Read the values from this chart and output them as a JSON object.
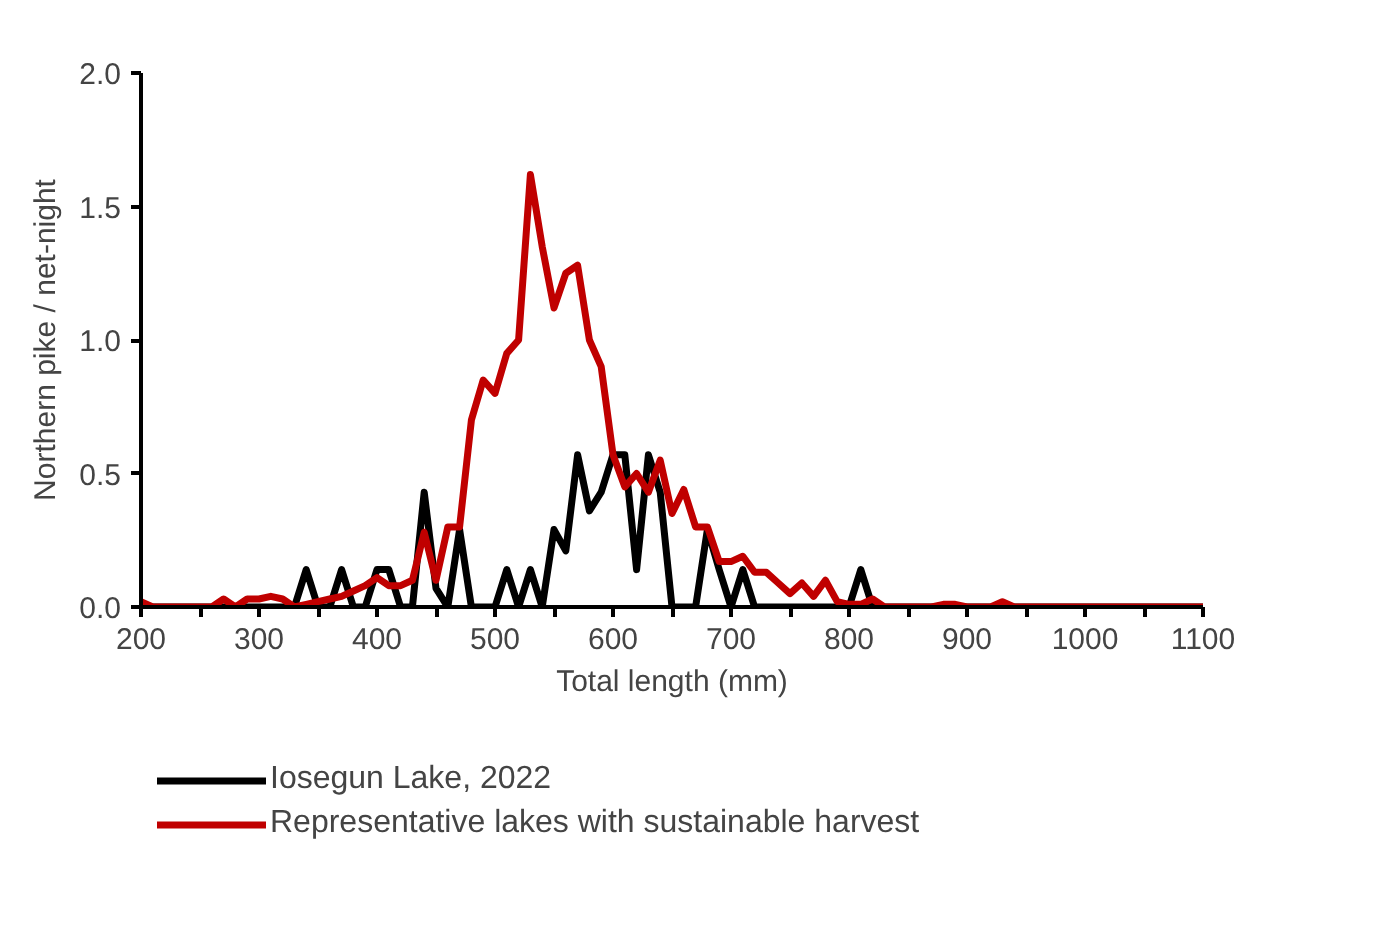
{
  "chart_data": {
    "type": "line",
    "xlabel": "Total length (mm)",
    "ylabel": "Northern pike / net-night",
    "x": [
      200,
      210,
      220,
      230,
      240,
      250,
      260,
      270,
      280,
      290,
      300,
      310,
      320,
      330,
      340,
      350,
      360,
      370,
      380,
      390,
      400,
      410,
      420,
      430,
      440,
      450,
      460,
      470,
      480,
      490,
      500,
      510,
      520,
      530,
      540,
      550,
      560,
      570,
      580,
      590,
      600,
      610,
      620,
      630,
      640,
      650,
      660,
      670,
      680,
      690,
      700,
      710,
      720,
      730,
      740,
      750,
      760,
      770,
      780,
      790,
      800,
      810,
      820,
      830,
      840,
      850,
      860,
      870,
      880,
      890,
      900,
      910,
      920,
      930,
      940,
      950,
      960,
      970,
      980,
      990,
      1000,
      1010,
      1020,
      1030,
      1040,
      1050,
      1060,
      1070,
      1080,
      1090,
      1100
    ],
    "series": [
      {
        "name": "Iosegun Lake, 2022",
        "color": "#000000",
        "values": [
          0,
          0,
          0,
          0,
          0,
          0,
          0,
          0,
          0,
          0,
          0,
          0,
          0,
          0,
          0.14,
          0,
          0,
          0.14,
          0,
          0,
          0.14,
          0.14,
          0,
          0,
          0.43,
          0.07,
          0,
          0.29,
          0,
          0,
          0,
          0.14,
          0,
          0.14,
          0,
          0.29,
          0.21,
          0.57,
          0.36,
          0.43,
          0.57,
          0.57,
          0.14,
          0.57,
          0.43,
          0,
          0,
          0,
          0.29,
          0.14,
          0,
          0.14,
          0,
          0,
          0,
          0,
          0,
          0,
          0,
          0,
          0,
          0.14,
          0,
          0,
          0,
          0,
          0,
          0,
          0,
          0,
          0,
          0,
          0,
          0,
          0,
          0,
          0,
          0,
          0,
          0,
          0,
          0,
          0,
          0,
          0,
          0,
          0,
          0,
          0,
          0,
          0
        ]
      },
      {
        "name": "Representative lakes with sustainable harvest",
        "color": "#c00000",
        "values": [
          0.02,
          0,
          0,
          0,
          0,
          0,
          0,
          0.03,
          0,
          0.03,
          0.03,
          0.04,
          0.03,
          0,
          0.01,
          0.02,
          0.03,
          0.04,
          0.06,
          0.08,
          0.11,
          0.08,
          0.08,
          0.1,
          0.28,
          0.1,
          0.3,
          0.3,
          0.7,
          0.85,
          0.8,
          0.95,
          1.0,
          1.62,
          1.35,
          1.12,
          1.25,
          1.28,
          1.0,
          0.9,
          0.57,
          0.45,
          0.5,
          0.43,
          0.55,
          0.35,
          0.44,
          0.3,
          0.3,
          0.17,
          0.17,
          0.19,
          0.13,
          0.13,
          0.09,
          0.05,
          0.09,
          0.04,
          0.1,
          0.02,
          0.01,
          0.01,
          0.03,
          0,
          0,
          0,
          0,
          0,
          0.01,
          0.01,
          0,
          0,
          0,
          0.02,
          0,
          0,
          0,
          0,
          0,
          0,
          0,
          0,
          0,
          0,
          0,
          0,
          0,
          0,
          0,
          0,
          0
        ]
      }
    ],
    "xlim": [
      200,
      1100
    ],
    "xticks": [
      200,
      {
        "value": 250,
        "label": null
      },
      300,
      {
        "value": 350,
        "label": null
      },
      400,
      {
        "value": 450,
        "label": null
      },
      500,
      {
        "value": 550,
        "label": null
      },
      600,
      {
        "value": 650,
        "label": null
      },
      700,
      {
        "value": 750,
        "label": null
      },
      800,
      {
        "value": 850,
        "label": null
      },
      900,
      {
        "value": 950,
        "label": null
      },
      1000,
      {
        "value": 1050,
        "label": null
      },
      1100
    ],
    "ylim": [
      0,
      2.0
    ],
    "yticks": [
      {
        "value": 0,
        "label": "0.0"
      },
      {
        "value": 0.5,
        "label": "0.5"
      },
      {
        "value": 1.0,
        "label": "1.0"
      },
      {
        "value": 1.5,
        "label": "1.5"
      },
      {
        "value": 2.0,
        "label": "2.0"
      }
    ],
    "grid": false,
    "legend": "bottom",
    "marker": "none",
    "line_style": "solid"
  }
}
